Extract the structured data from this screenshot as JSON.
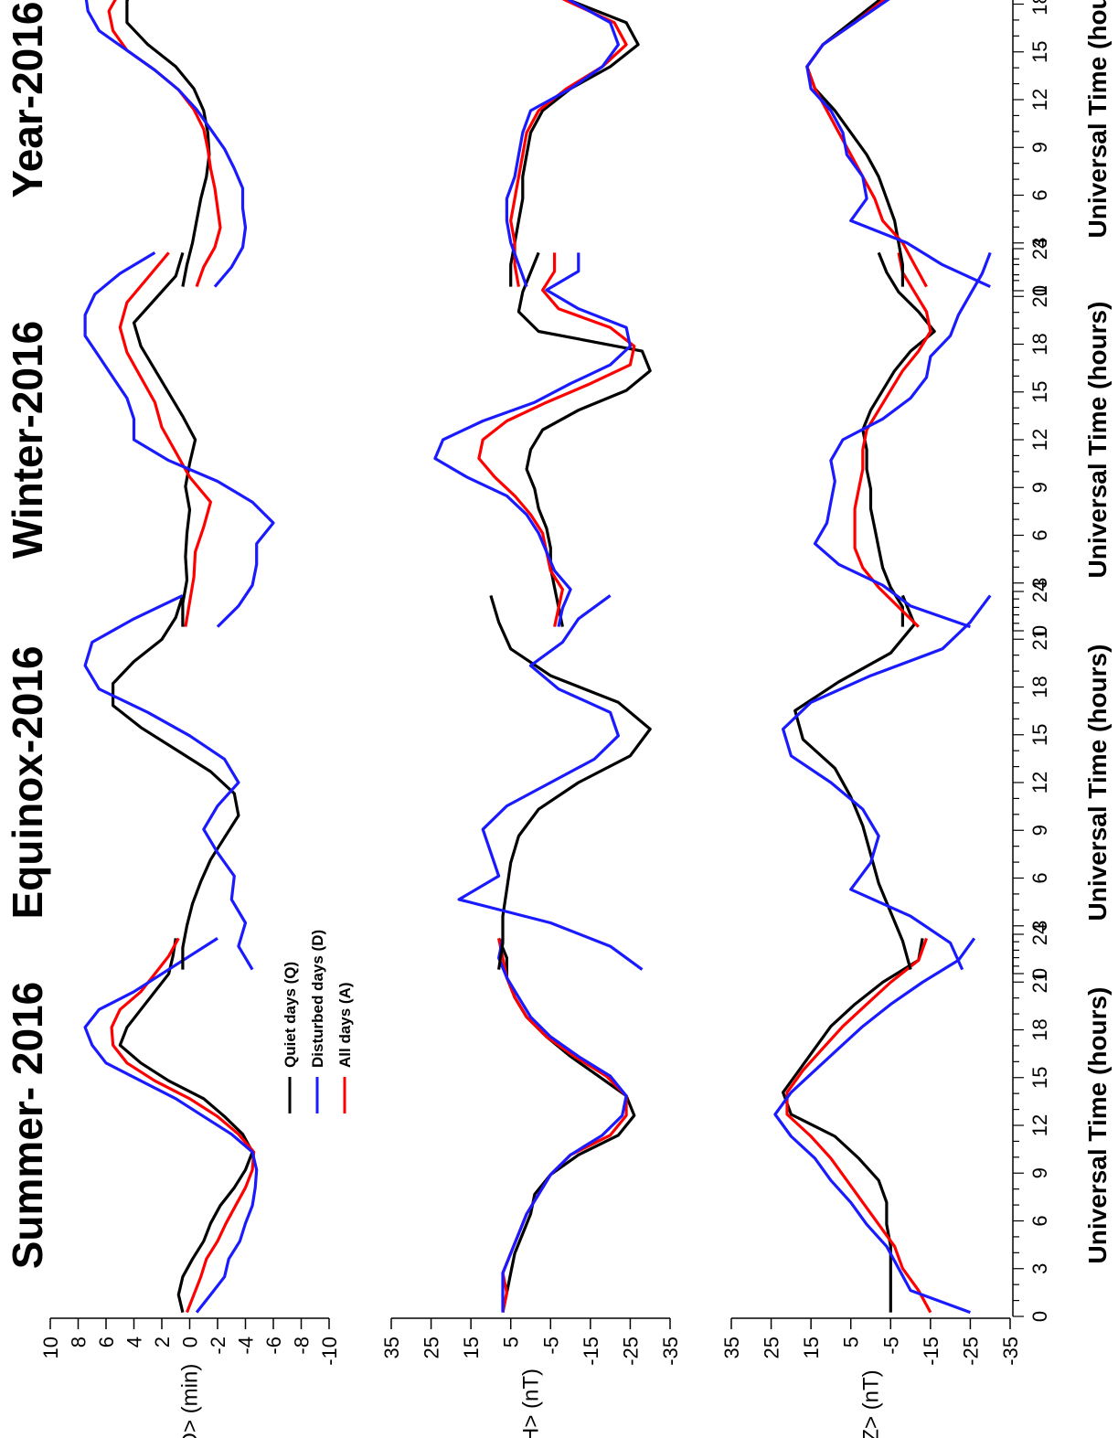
{
  "figure": {
    "legend": [
      {
        "label": "Quiet days (Q)",
        "color": "#000000"
      },
      {
        "label": "Disturbed days (D)",
        "color": "#1a1aff"
      },
      {
        "label": "All days (A)",
        "color": "#ff0000"
      }
    ]
  },
  "chart_data": {
    "type": "line",
    "x_label": "Universal Time (hours)",
    "x_ticks": [
      0,
      3,
      6,
      9,
      12,
      15,
      18,
      21,
      24
    ],
    "x_range": [
      0,
      24
    ],
    "x": [
      0.5,
      1.5,
      2.5,
      3.5,
      4.5,
      5.5,
      6.5,
      7.5,
      8.5,
      9.5,
      10.5,
      11.5,
      12.5,
      13.5,
      14.5,
      15.5,
      16.5,
      17.5,
      18.5,
      19.5,
      20.5,
      21.5,
      22.5,
      23.5
    ],
    "rows": [
      {
        "ylabel": "<D> (min)",
        "ylim": [
          -10,
          10
        ],
        "yticks": [
          10,
          8,
          6,
          4,
          2,
          0,
          -2,
          -4,
          -6,
          -8,
          -10
        ]
      },
      {
        "ylabel": "<H> (nT)",
        "ylim": [
          -35,
          35
        ],
        "yticks": [
          35,
          25,
          15,
          5,
          -5,
          -15,
          -25,
          -35
        ]
      },
      {
        "ylabel": "<Z> (nT)",
        "ylim": [
          -35,
          35
        ],
        "yticks": [
          35,
          25,
          15,
          5,
          -5,
          -15,
          -25,
          -35
        ]
      }
    ],
    "columns": [
      {
        "title": "Summer- 2016"
      },
      {
        "title": "Equinox-2016"
      },
      {
        "title": "Winter-2016"
      },
      {
        "title": "Year-2016"
      }
    ],
    "panels": [
      [
        {
          "Q": [
            0.5,
            0.8,
            0.5,
            -0.2,
            -1.0,
            -1.5,
            -2.2,
            -3.2,
            -4.0,
            -4.5,
            -3.8,
            -2.5,
            -1.0,
            1.5,
            3.5,
            5.0,
            4.5,
            3.5,
            2.5,
            1.5,
            1.2,
            1.0,
            null,
            null
          ],
          "D": [
            -0.5,
            -1.5,
            -2.5,
            -2.8,
            -3.6,
            -4.0,
            -4.5,
            -4.7,
            -4.8,
            -4.5,
            -3.0,
            -1.0,
            1.0,
            3.5,
            6.0,
            7.0,
            7.5,
            6.5,
            4.0,
            2.0,
            0.0,
            -2.0,
            null,
            null
          ],
          "A": [
            0.2,
            -0.3,
            -0.8,
            -1.2,
            -2.0,
            -2.6,
            -3.3,
            -4.0,
            -4.5,
            -4.6,
            -3.5,
            -2.0,
            0.0,
            2.5,
            4.5,
            5.5,
            5.6,
            5.0,
            3.5,
            2.5,
            1.5,
            0.8,
            null,
            null
          ]
        },
        {
          "Q": [
            7,
            6,
            5,
            4,
            2,
            0,
            -1,
            -5,
            -12,
            -22,
            -26,
            -24,
            -17,
            -10,
            -4,
            1,
            4,
            6,
            6,
            8,
            null,
            null,
            null,
            null
          ],
          "D": [
            7,
            7,
            7,
            5,
            3,
            1,
            -2,
            -5,
            -10,
            -18,
            -23,
            -24,
            -20,
            -12,
            -5,
            0,
            3,
            6,
            8,
            7,
            null,
            null,
            null,
            null
          ],
          "A": [
            7,
            6,
            7,
            5,
            3,
            1,
            -2,
            -5,
            -10,
            -20,
            -24,
            -24,
            -19,
            -11,
            -4,
            1,
            4,
            6,
            7,
            8,
            null,
            null,
            null,
            null
          ]
        },
        {
          "Q": [
            -5,
            -5,
            -5,
            -5,
            -4,
            -4,
            -2,
            3,
            9,
            20,
            22,
            18,
            14,
            10,
            4,
            -3,
            -12,
            -13,
            null,
            null,
            null,
            null,
            null,
            null
          ],
          "D": [
            -25,
            -10,
            -7,
            -4,
            1,
            5,
            10,
            14,
            20,
            24,
            20,
            14,
            8,
            2,
            -5,
            -13,
            -22,
            -26,
            null,
            null,
            null,
            null,
            null,
            null
          ],
          "A": [
            -15,
            -12,
            -8,
            -6,
            -2,
            2,
            6,
            10,
            15,
            21,
            21,
            17,
            12,
            7,
            1,
            -5,
            -12,
            -14,
            null,
            null,
            null,
            null,
            null,
            null
          ]
        }
      ],
      [
        {
          "Q": [
            0.5,
            0.5,
            0.2,
            -0.2,
            -0.8,
            -1.5,
            -2.5,
            -3.5,
            -3.2,
            -1.5,
            1.0,
            3.5,
            5.5,
            5.5,
            4.0,
            2.0,
            1.0,
            0.5,
            null,
            null,
            null,
            null,
            null,
            null
          ],
          "D": [
            -4.5,
            -3.5,
            -4.0,
            -3.0,
            -3.2,
            -2.0,
            -1.0,
            -2.0,
            -3.5,
            -2.5,
            0.0,
            3.0,
            6.5,
            7.5,
            7.0,
            4.0,
            0.5,
            null,
            null,
            null,
            null,
            null,
            null,
            null
          ],
          "A": []
        },
        {
          "Q": [
            8,
            7,
            7,
            6,
            5,
            3,
            -2,
            -12,
            -25,
            -30,
            -22,
            -5,
            5,
            8,
            10,
            null,
            null,
            null,
            null,
            null,
            null,
            null,
            null,
            null
          ],
          "D": [
            -28,
            -20,
            -5,
            18,
            8,
            10,
            12,
            6,
            -5,
            -16,
            -22,
            -20,
            -7,
            0,
            -8,
            -12,
            -20,
            null,
            null,
            null,
            null,
            null,
            null,
            null
          ],
          "A": []
        },
        {
          "Q": [
            -10,
            -8,
            -5,
            -2,
            0,
            2,
            5,
            9,
            17,
            19,
            8,
            -5,
            -11,
            -8,
            null,
            null,
            null,
            null,
            null,
            null,
            null,
            null,
            null,
            null
          ],
          "D": [
            -23,
            -20,
            -10,
            5,
            0,
            -2,
            2,
            10,
            20,
            22,
            15,
            0,
            -18,
            -25,
            -30,
            null,
            null,
            null,
            null,
            null,
            null,
            null,
            null,
            null
          ],
          "A": []
        }
      ],
      [
        {
          "Q": [
            0.5,
            0.5,
            0.2,
            0.3,
            0.2,
            0.0,
            0.3,
            0.0,
            -0.4,
            0.5,
            1.5,
            2.5,
            3.5,
            4.0,
            2.5,
            1.0,
            0.5,
            null,
            null,
            null,
            null,
            null,
            null,
            null
          ],
          "D": [
            -2.5,
            -1.5,
            -0.5,
            0.0,
            0.5,
            1.5,
            3.5,
            5.0,
            7.0,
            6.5,
            6.0,
            5.5,
            6.5,
            7.5,
            7.0,
            4.0,
            3.0,
            null,
            null,
            null,
            null,
            null,
            null,
            null
          ],
          "A": [
            0.3,
            0.0,
            -0.3,
            -0.4,
            -1.0,
            -1.5,
            0.0,
            1.0,
            2.0,
            2.5,
            3.5,
            4.5,
            5.0,
            4.5,
            3.0,
            1.5,
            null,
            null,
            null,
            null,
            null,
            null,
            null,
            null
          ],
          "Dfull": [
            -2.0,
            -3.5,
            -4.5,
            -4.8,
            -4.8,
            -6.0,
            -4.5,
            -2.0,
            1.5,
            4.0,
            4.0,
            4.5,
            5.5,
            6.5,
            7.5,
            7.5,
            6.8,
            5.0,
            2.5,
            null,
            null,
            null,
            null,
            null
          ]
        },
        {
          "Q": [
            -8,
            -7,
            -6,
            -5,
            -5,
            -4,
            -2,
            -1,
            1,
            0,
            -3,
            -12,
            -24,
            -30,
            -28,
            -2,
            3,
            2,
            0,
            -2,
            null,
            null,
            null,
            null
          ],
          "D": [
            -7,
            -8,
            -10,
            -6,
            -4,
            -2,
            1,
            6,
            16,
            24,
            22,
            12,
            -1,
            -10,
            -20,
            -25,
            -24,
            -12,
            -4,
            -12,
            -12,
            null,
            null,
            null
          ],
          "A": [
            -6,
            -7,
            -8,
            -5,
            -4,
            -3,
            0,
            4,
            9,
            13,
            12,
            6,
            -4,
            -15,
            -25,
            -26,
            -20,
            -7,
            -3,
            -6,
            -6,
            null,
            null,
            null
          ]
        },
        {
          "Q": [
            -8,
            -8,
            -5,
            -3,
            -2,
            -1,
            0,
            0,
            1,
            1,
            2,
            0,
            -3,
            -6,
            -10,
            -16,
            -12,
            -7,
            -4,
            -2,
            null,
            null,
            null,
            null
          ],
          "D": [
            -25,
            -10,
            -3,
            8,
            14,
            11,
            10,
            9,
            10,
            7,
            -3,
            -10,
            -14,
            -15,
            -20,
            -22,
            -25,
            -28,
            -30,
            null,
            null,
            null,
            null,
            null
          ],
          "A": [
            -12,
            -7,
            -2,
            2,
            4,
            4,
            4,
            3,
            2,
            2,
            1,
            -2,
            -5,
            -8,
            -12,
            -15,
            -14,
            -11,
            -8,
            -7,
            null,
            null,
            null,
            null
          ]
        }
      ],
      [
        {
          "Q": [
            0.5,
            0.2,
            -0.2,
            -0.5,
            -0.8,
            -1.2,
            -1.4,
            -1.3,
            -1.0,
            -0.3,
            1.0,
            3.0,
            4.5,
            4.5,
            3.5,
            2.0,
            1.0,
            0.5,
            null,
            null,
            null,
            null,
            null,
            null
          ],
          "D": [
            -1.8,
            -3.0,
            -3.8,
            -4.0,
            -3.8,
            -3.8,
            -3.2,
            -2.5,
            -1.5,
            -0.5,
            0.8,
            2.5,
            4.5,
            6.5,
            7.3,
            7.5,
            6.5,
            4.5,
            2.5,
            0.8,
            null,
            null,
            null,
            null
          ],
          "A": [
            -0.5,
            -1.0,
            -1.8,
            -2.2,
            -2.0,
            -1.8,
            -1.5,
            -1.3,
            -1.0,
            -0.3,
            0.8,
            2.5,
            4.5,
            5.5,
            5.8,
            5.0,
            3.5,
            2.0,
            1.0,
            0.5,
            null,
            null,
            null,
            null
          ],
          "full": true
        },
        {
          "Q": [
            5,
            5,
            4,
            3,
            2,
            2,
            1,
            0,
            -3,
            -10,
            -20,
            -27,
            -24,
            -10,
            5,
            8,
            9,
            9,
            null,
            null,
            null,
            null,
            null,
            null
          ],
          "D": [
            1,
            3,
            5,
            6,
            6,
            4,
            3,
            2,
            0,
            -10,
            -18,
            -22,
            -20,
            -10,
            -2,
            -3,
            0,
            -3,
            null,
            null,
            null,
            null,
            null,
            null
          ],
          "A": [
            3,
            4,
            4,
            5,
            4,
            3,
            2,
            1,
            -2,
            -9,
            -18,
            -24,
            -21,
            -9,
            2,
            5,
            6,
            5,
            null,
            null,
            null,
            null,
            null,
            null
          ]
        },
        {
          "Q": [
            -8,
            -8,
            -7,
            -6,
            -4,
            -2,
            1,
            5,
            9,
            14,
            16,
            12,
            5,
            -2,
            -6,
            -9,
            -10,
            -8,
            null,
            null,
            null,
            null,
            null,
            null
          ],
          "D": [
            -30,
            -18,
            -9,
            5,
            1,
            2,
            6,
            7,
            10,
            15,
            16,
            12,
            4,
            -4,
            -12,
            -20,
            -28,
            -30,
            null,
            null,
            null,
            null,
            null,
            null
          ],
          "A": [
            -14,
            -11,
            -8,
            -3,
            -1,
            2,
            5,
            8,
            11,
            14,
            16,
            12,
            4,
            -3,
            -8,
            -11,
            -12,
            -12,
            null,
            null,
            null,
            null,
            null,
            null
          ]
        }
      ]
    ]
  }
}
